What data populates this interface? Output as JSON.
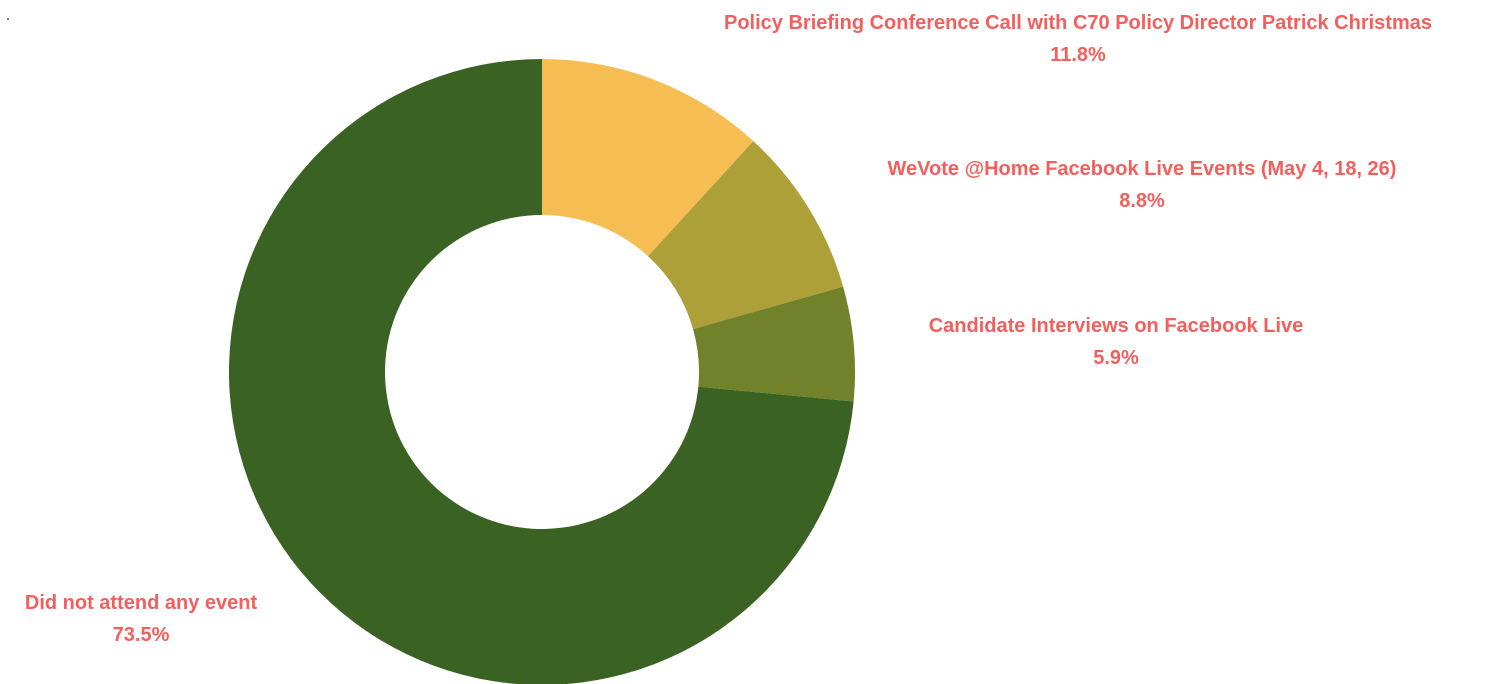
{
  "chart_data": {
    "type": "pie",
    "variant": "donut",
    "title": "",
    "label_color": "#f25f5c",
    "slices": [
      {
        "label": "Policy Briefing Conference Call with C70 Policy Director Patrick Christmas",
        "value": 11.8,
        "display": "11.8%",
        "color": "#f5bd52"
      },
      {
        "label": "WeVote @Home Facebook Live Events (May 4, 18, 26)",
        "value": 8.8,
        "display": "8.8%",
        "color": "#ada038"
      },
      {
        "label": "Candidate Interviews on Facebook Live",
        "value": 5.9,
        "display": "5.9%",
        "color": "#71822b"
      },
      {
        "label": "Did not attend any event",
        "value": 73.5,
        "display": "73.5%",
        "color": "#3a6222"
      }
    ]
  }
}
